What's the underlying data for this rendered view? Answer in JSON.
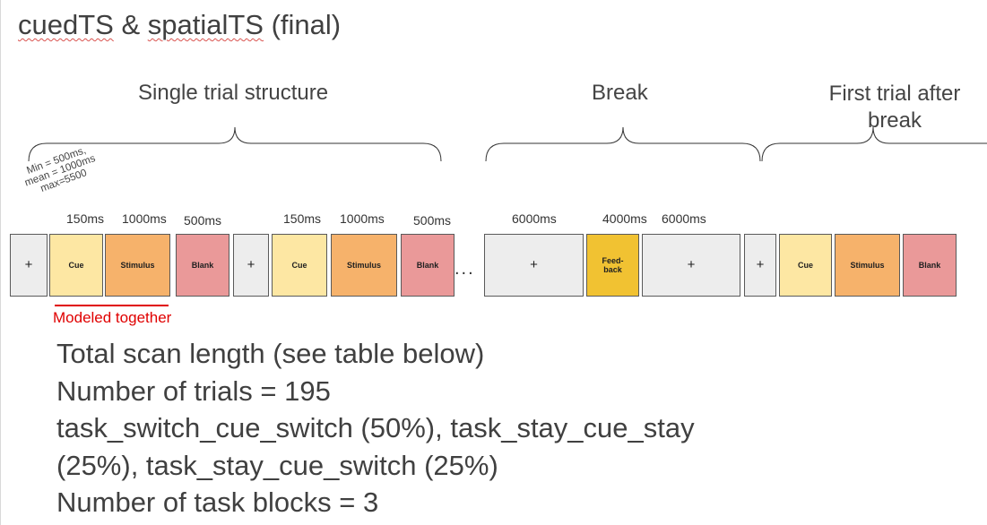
{
  "title": {
    "part1": "cuedTS",
    "amp": " & ",
    "part2": "spatialTS",
    "suffix": " (final)"
  },
  "sections": {
    "single_trial": "Single trial structure",
    "break": "Break",
    "first_trial_line1": "First trial after",
    "first_trial_line2": "break"
  },
  "timing_note": {
    "line1": "Min = 500ms,",
    "line2": "mean = 1000ms",
    "line3": "max=5500"
  },
  "durations": {
    "cue1": "150ms",
    "stim1": "1000ms",
    "blank1": "500ms",
    "cue2": "150ms",
    "stim2": "1000ms",
    "blank2": "500ms",
    "break_fix1": "6000ms",
    "feedback": "4000ms",
    "break_fix2": "6000ms"
  },
  "boxes": {
    "fixation": "+",
    "cue": "Cue",
    "stimulus": "Stimulus",
    "blank": "Blank",
    "feedback_line1": "Feed-",
    "feedback_line2": "back"
  },
  "ellipsis": "...",
  "modeled_together": "Modeled together",
  "info_lines": [
    "Total scan length (see table below)",
    "Number of trials = 195",
    "task_switch_cue_switch (50%), task_stay_cue_stay",
    "(25%), task_stay_cue_switch (25%)",
    "Number of task blocks = 3"
  ],
  "colors": {
    "fixation": "#ededed",
    "cue": "#fde7a3",
    "stimulus": "#f6b26b",
    "blank": "#ea9999",
    "feedback": "#f1c232",
    "modeled": "#e00000"
  }
}
